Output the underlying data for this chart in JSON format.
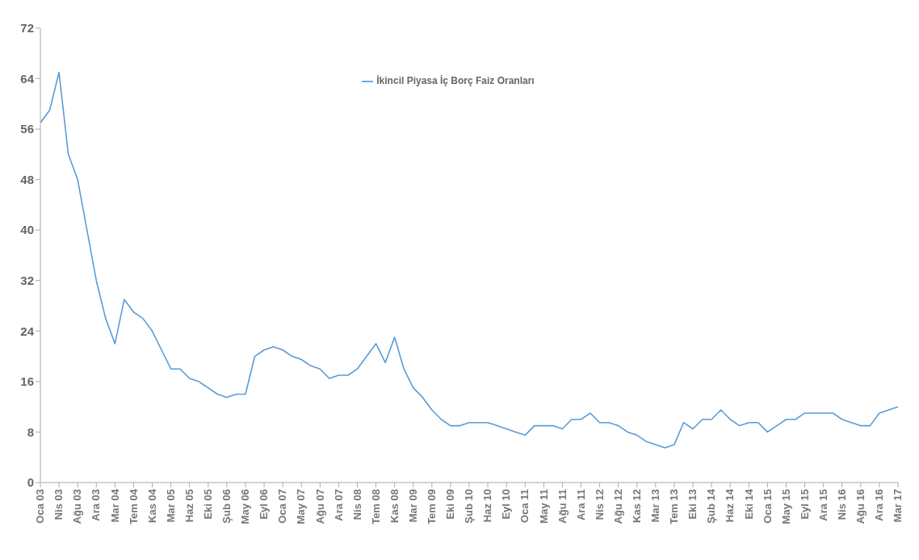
{
  "chart_data": {
    "type": "line",
    "categories": [
      "Oca 03",
      null,
      "Nis 03",
      null,
      "Ağu 03",
      null,
      "Ara 03",
      null,
      "Mar 04",
      null,
      "Tem 04",
      null,
      "Kas 04",
      null,
      "Mar 05",
      null,
      "Haz 05",
      null,
      "Eki 05",
      null,
      "Şub 06",
      null,
      "May 06",
      null,
      "Eyl 06",
      null,
      "Oca 07",
      null,
      "May 07",
      null,
      "Ağu 07",
      null,
      "Ara 07",
      null,
      "Nis 08",
      null,
      "Tem 08",
      null,
      "Kas 08",
      null,
      "Mar 09",
      null,
      "Tem 09",
      null,
      "Eki 09",
      null,
      "Şub 10",
      null,
      "Haz 10",
      null,
      "Eyl 10",
      null,
      "Oca 11",
      null,
      "May 11",
      null,
      "Ağu 11",
      null,
      "Ara 11",
      null,
      "Nis 12",
      null,
      "Ağu 12",
      null,
      "Kas 12",
      null,
      "Mar 13",
      null,
      "Tem 13",
      null,
      "Eki 13",
      null,
      "Şub 14",
      null,
      "Haz 14",
      null,
      "Eki 14",
      null,
      "Oca 15",
      null,
      "May 15",
      null,
      "Eyl 15",
      null,
      "Ara 15",
      null,
      "Nis 16",
      null,
      "Ağu 16",
      null,
      "Ara 16",
      null,
      "Mar 17"
    ],
    "series": [
      {
        "name": "İkincil Piyasa İç Borç Faiz Oranları",
        "color": "#5b9bd5",
        "values": [
          57,
          59,
          65,
          52,
          48,
          40,
          32,
          26,
          22,
          29,
          27,
          26,
          24,
          21,
          18,
          18,
          16.5,
          16,
          15,
          14,
          13.5,
          14,
          14,
          20,
          21,
          21.5,
          21,
          20,
          19.5,
          18.5,
          18,
          16.5,
          17,
          17,
          18,
          20,
          22,
          19,
          23,
          18,
          15,
          13.5,
          11.5,
          10,
          9,
          9,
          9.5,
          9.5,
          9.5,
          9,
          8.5,
          8,
          7.5,
          9,
          9,
          9,
          8.5,
          10,
          10,
          11,
          9.5,
          9.5,
          9,
          8,
          7.5,
          6.5,
          6,
          5.5,
          6,
          9.5,
          8.5,
          10,
          10,
          11.5,
          10,
          9,
          9.5,
          9.5,
          8,
          9,
          10,
          10,
          11,
          11,
          11,
          11,
          10,
          9.5,
          9,
          9,
          11,
          11.5,
          12
        ]
      }
    ],
    "ylim": [
      0,
      72
    ],
    "yticks": [
      0,
      8,
      16,
      24,
      32,
      40,
      48,
      56,
      64,
      72
    ],
    "grid": false,
    "legend": "top",
    "marker": "none",
    "line_style": "solid"
  }
}
